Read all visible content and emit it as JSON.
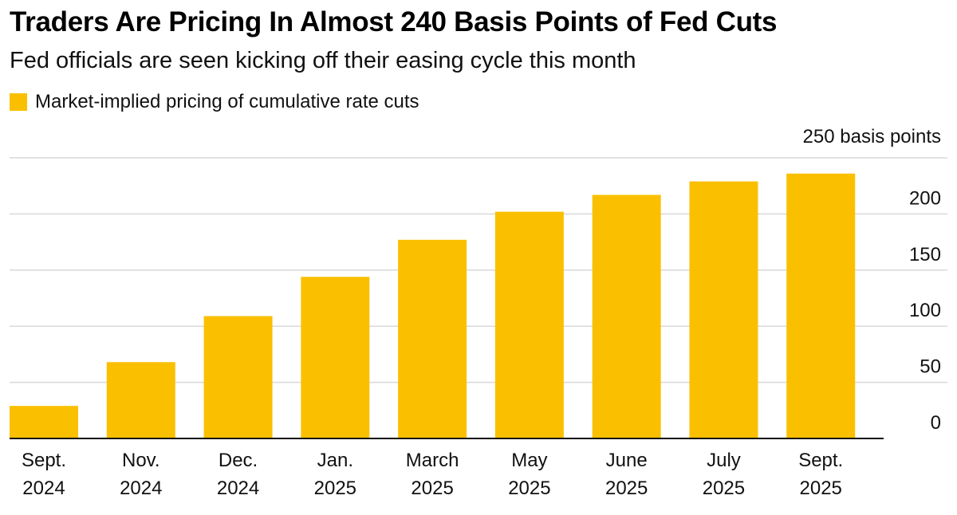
{
  "chart_data": {
    "type": "bar",
    "title": "Traders Are Pricing In Almost 240 Basis Points of Fed Cuts",
    "subtitle": "Fed officials are seen kicking off their easing cycle this month",
    "legend": [
      "Market-implied pricing of cumulative rate cuts"
    ],
    "ylabel": "250 basis points",
    "xlabel": "",
    "ylim": [
      0,
      250
    ],
    "yticks": [
      0,
      50,
      100,
      150,
      200
    ],
    "grid": true,
    "legend_position": "top-left",
    "y_axis_side": "right",
    "categories": [
      [
        "Sept.",
        "2024"
      ],
      [
        "Nov.",
        "2024"
      ],
      [
        "Dec.",
        "2024"
      ],
      [
        "Jan.",
        "2025"
      ],
      [
        "March",
        "2025"
      ],
      [
        "May",
        "2025"
      ],
      [
        "June",
        "2025"
      ],
      [
        "July",
        "2025"
      ],
      [
        "Sept.",
        "2025"
      ]
    ],
    "values": [
      29,
      68,
      109,
      144,
      177,
      202,
      217,
      229,
      236
    ],
    "color": "#FAC000"
  }
}
